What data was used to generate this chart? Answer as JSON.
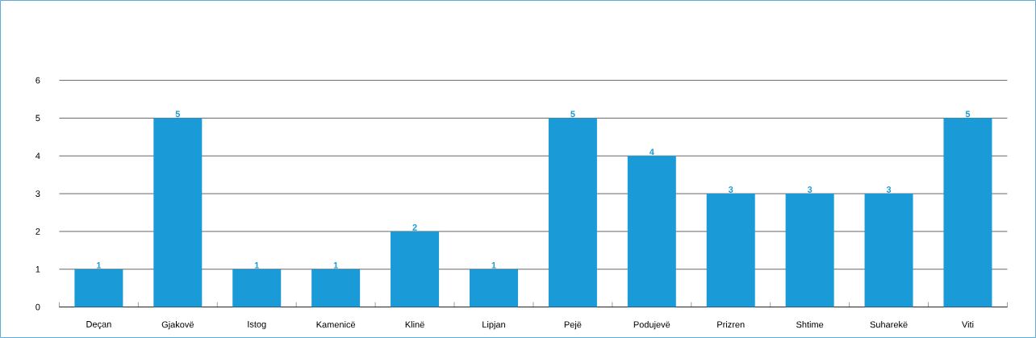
{
  "chart_data": {
    "type": "bar",
    "categories": [
      "Deçan",
      "Gjakovë",
      "Istog",
      "Kamenicë",
      "Klinë",
      "Lipjan",
      "Pejë",
      "Podujevë",
      "Prizren",
      "Shtime",
      "Suharekë",
      "Viti"
    ],
    "values": [
      1,
      5,
      1,
      1,
      2,
      1,
      5,
      4,
      3,
      3,
      3,
      5
    ],
    "color": "#1a9ad6",
    "ylim": [
      0,
      6
    ],
    "yticks": [
      0,
      1,
      2,
      3,
      4,
      5,
      6
    ],
    "grid": "y",
    "data_labels": true
  }
}
